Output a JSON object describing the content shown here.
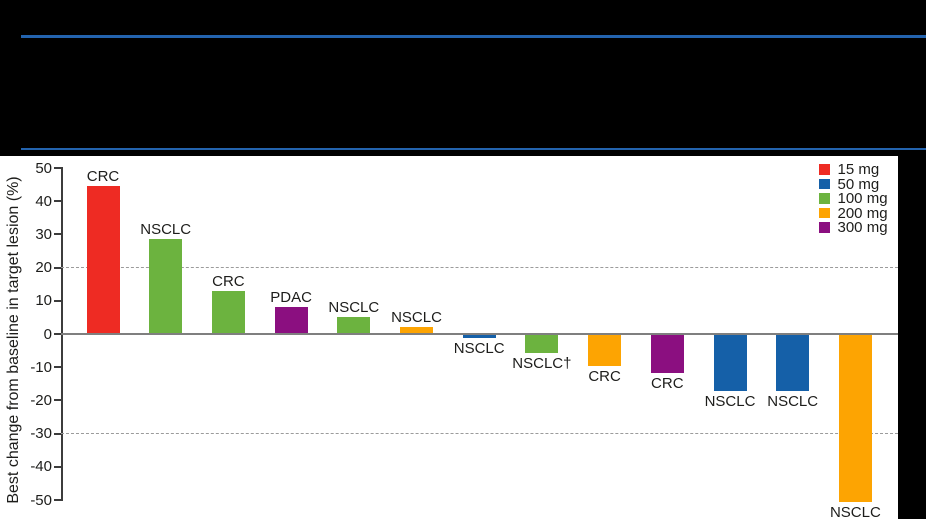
{
  "chart_data": {
    "type": "bar",
    "subtype": "waterfall",
    "ylabel": "Best change from baseline in target lesion (%)",
    "ylim": [
      -50,
      50
    ],
    "ytick_step": 10,
    "yticks": [
      50,
      40,
      30,
      20,
      10,
      0,
      -10,
      -20,
      -30,
      -40,
      -50
    ],
    "grid": "off",
    "reference_lines": [
      20,
      -30
    ],
    "zero_baseline": 0,
    "legend_position": "top-right",
    "legend": [
      {
        "label": "15 mg",
        "color": "#ee2b23"
      },
      {
        "label": "50 mg",
        "color": "#1560a8"
      },
      {
        "label": "100 mg",
        "color": "#6cb33f"
      },
      {
        "label": "200 mg",
        "color": "#fda402"
      },
      {
        "label": "300 mg",
        "color": "#8b0f80"
      }
    ],
    "bars": [
      {
        "category": "CRC",
        "dose": "15 mg",
        "value": 44.5
      },
      {
        "category": "NSCLC",
        "dose": "100 mg",
        "value": 28.5
      },
      {
        "category": "CRC",
        "dose": "100 mg",
        "value": 13
      },
      {
        "category": "PDAC",
        "dose": "300 mg",
        "value": 8
      },
      {
        "category": "NSCLC",
        "dose": "100 mg",
        "value": 5
      },
      {
        "category": "NSCLC",
        "dose": "200 mg",
        "value": 2
      },
      {
        "category": "NSCLC",
        "dose": "50 mg",
        "value": -1
      },
      {
        "category": "NSCLC†",
        "dose": "100 mg",
        "value": -5.5
      },
      {
        "category": "CRC",
        "dose": "200 mg",
        "value": -9.5
      },
      {
        "category": "CRC",
        "dose": "300 mg",
        "value": -11.5
      },
      {
        "category": "NSCLC",
        "dose": "50 mg",
        "value": -17
      },
      {
        "category": "NSCLC",
        "dose": "50 mg",
        "value": -17
      },
      {
        "category": "NSCLC",
        "dose": "200 mg",
        "value": -50.5
      }
    ]
  },
  "colors": {
    "background": "#000000",
    "plot_background": "#ffffff",
    "accent_line": "#2363ae",
    "axis": "#3c3c3c",
    "zero_line": "#7f7f7f",
    "dashed_line": "#9b9b9b",
    "text": "#1d1d1b"
  }
}
